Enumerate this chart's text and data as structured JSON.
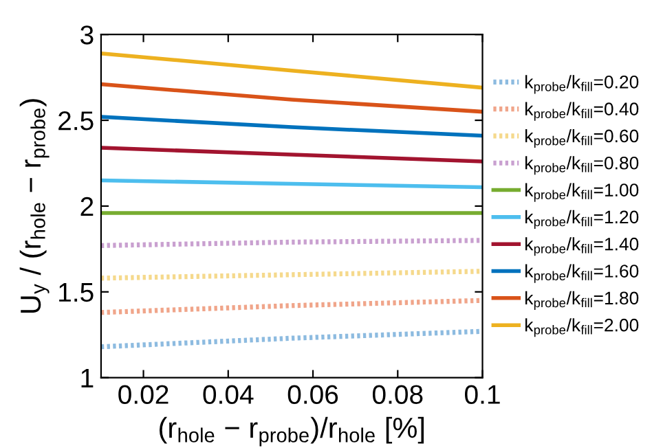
{
  "chart_data": {
    "type": "line",
    "xlabel": "(r$_{hole}$ − r$_{probe}$)/r$_{hole}$ [%]",
    "ylabel": "U$_{y}$ / (r$_{hole}$ − r$_{probe}$)",
    "x": [
      0.01,
      0.055,
      0.1
    ],
    "xlim": [
      0.01,
      0.1
    ],
    "xticks": [
      0.02,
      0.04,
      0.06,
      0.08,
      0.1
    ],
    "ylim": [
      1,
      3
    ],
    "yticks": [
      1,
      1.5,
      2,
      2.5,
      3
    ],
    "grid": false,
    "legend": "right",
    "marker": "none",
    "series": [
      {
        "name": "k$_{probe}$/k$_{fill}$=0.20",
        "color": "#8dbbe0",
        "line_style": "dotted",
        "values": [
          1.18,
          1.23,
          1.27
        ]
      },
      {
        "name": "k$_{probe}$/k$_{fill}$=0.40",
        "color": "#f0a58a",
        "line_style": "dotted",
        "values": [
          1.38,
          1.42,
          1.45
        ]
      },
      {
        "name": "k$_{probe}$/k$_{fill}$=0.60",
        "color": "#f5d98c",
        "line_style": "dotted",
        "values": [
          1.58,
          1.6,
          1.62
        ]
      },
      {
        "name": "k$_{probe}$/k$_{fill}$=0.80",
        "color": "#c9a0d0",
        "line_style": "dotted",
        "values": [
          1.77,
          1.79,
          1.8
        ]
      },
      {
        "name": "k$_{probe}$/k$_{fill}$=1.00",
        "color": "#77ac30",
        "line_style": "solid",
        "values": [
          1.96,
          1.96,
          1.96
        ]
      },
      {
        "name": "k$_{probe}$/k$_{fill}$=1.20",
        "color": "#4dbeee",
        "line_style": "solid",
        "values": [
          2.15,
          2.13,
          2.11
        ]
      },
      {
        "name": "k$_{probe}$/k$_{fill}$=1.40",
        "color": "#a2142f",
        "line_style": "solid",
        "values": [
          2.34,
          2.3,
          2.26
        ]
      },
      {
        "name": "k$_{probe}$/k$_{fill}$=1.60",
        "color": "#0072bd",
        "line_style": "solid",
        "values": [
          2.52,
          2.46,
          2.41
        ]
      },
      {
        "name": "k$_{probe}$/k$_{fill}$=1.80",
        "color": "#d95319",
        "line_style": "solid",
        "values": [
          2.71,
          2.62,
          2.55
        ]
      },
      {
        "name": "k$_{probe}$/k$_{fill}$=2.00",
        "color": "#edb120",
        "line_style": "solid",
        "values": [
          2.89,
          2.79,
          2.69
        ]
      }
    ]
  }
}
